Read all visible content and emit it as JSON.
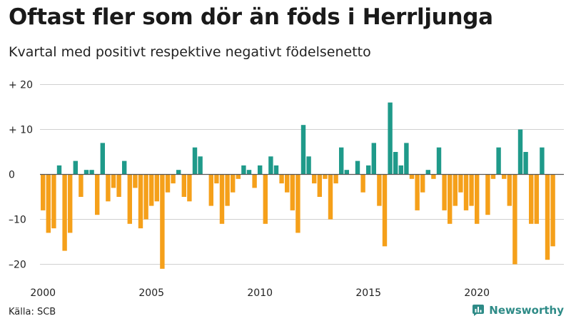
{
  "header": {
    "title": "Oftast fler som dör än föds i Herrljunga",
    "subtitle": "Kvartal med positivt respektive negativt födelsenetto"
  },
  "footer": {
    "source": "Källa: SCB",
    "brand": "Newsworthy",
    "brand_icon": "bar-chart-logo-icon"
  },
  "colors": {
    "positive": "#1f9a8a",
    "negative": "#f5a01a",
    "grid": "#d0d0d0",
    "axis_zero": "#555555",
    "brand": "#2e8b87"
  },
  "chart_data": {
    "type": "bar",
    "title": "Oftast fler som dör än föds i Herrljunga",
    "subtitle": "Kvartal med positivt respektive negativt födelsenetto",
    "xlabel": "",
    "ylabel": "",
    "ylim": [
      -22,
      21
    ],
    "y_ticks": [
      20,
      10,
      0,
      -10,
      -20
    ],
    "y_tick_labels": [
      "+ 20",
      "+ 10",
      "0",
      "–10",
      "–20"
    ],
    "x_ticks": [
      2000,
      2005,
      2010,
      2015,
      2020
    ],
    "x_tick_labels": [
      "2000",
      "2005",
      "2010",
      "2015",
      "2020"
    ],
    "start_year": 2000,
    "periods_per_year": 4,
    "grid": true,
    "legend": "none",
    "values": [
      -8,
      -13,
      -12,
      2,
      -17,
      -13,
      3,
      -5,
      1,
      1,
      -9,
      7,
      -6,
      -3,
      -5,
      3,
      -11,
      -3,
      -12,
      -10,
      -7,
      -6,
      -21,
      -4,
      -2,
      1,
      -5,
      -6,
      6,
      4,
      0,
      -7,
      -2,
      -11,
      -7,
      -4,
      -1,
      2,
      1,
      -3,
      2,
      -11,
      4,
      2,
      -2,
      -4,
      -8,
      -13,
      11,
      4,
      -2,
      -5,
      -1,
      -10,
      -2,
      6,
      1,
      0,
      3,
      -4,
      2,
      7,
      -7,
      -16,
      16,
      5,
      2,
      7,
      -1,
      -8,
      -4,
      1,
      -1,
      6,
      -8,
      -11,
      -7,
      -4,
      -8,
      -7,
      -11,
      0,
      -9,
      -1,
      6,
      -1,
      -7,
      -20,
      10,
      5,
      -11,
      -11,
      6,
      -19,
      -16
    ]
  }
}
